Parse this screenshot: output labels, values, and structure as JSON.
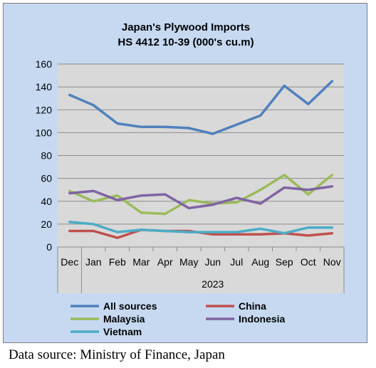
{
  "chart_data": {
    "type": "line",
    "title": "Japan's Plywood Imports",
    "subtitle": "HS 4412 10-39  (000's cu.m)",
    "categories": [
      "Dec",
      "Jan",
      "Feb",
      "Mar",
      "Apr",
      "May",
      "Jun",
      "Jul",
      "Aug",
      "Sep",
      "Oct",
      "Nov"
    ],
    "x_group_label": "2023",
    "ylim": [
      0,
      160
    ],
    "yticks": [
      "0",
      "20",
      "40",
      "60",
      "80",
      "100",
      "120",
      "140",
      "160"
    ],
    "grid": true,
    "legend_position": "bottom",
    "series": [
      {
        "name": "All sources",
        "color": "#4f81bd",
        "values": [
          133,
          124,
          108,
          105,
          105,
          104,
          99,
          107,
          115,
          141,
          125,
          145
        ]
      },
      {
        "name": "China",
        "color": "#c0504d",
        "values": [
          14,
          14,
          8,
          15,
          14,
          14,
          11,
          11,
          11,
          12,
          10,
          12
        ]
      },
      {
        "name": "Malaysia",
        "color": "#9bbb59",
        "values": [
          49,
          40,
          45,
          30,
          29,
          41,
          38,
          39,
          50,
          63,
          46,
          63
        ]
      },
      {
        "name": "Indonesia",
        "color": "#8064a2",
        "values": [
          47,
          49,
          41,
          45,
          46,
          34,
          37,
          43,
          38,
          52,
          50,
          53
        ]
      },
      {
        "name": "Vietnam",
        "color": "#4bacc6",
        "values": [
          22,
          20,
          13,
          15,
          14,
          13,
          13,
          13,
          16,
          12,
          17,
          17
        ]
      }
    ]
  },
  "source_note": "Data source: Ministry of Finance, Japan"
}
